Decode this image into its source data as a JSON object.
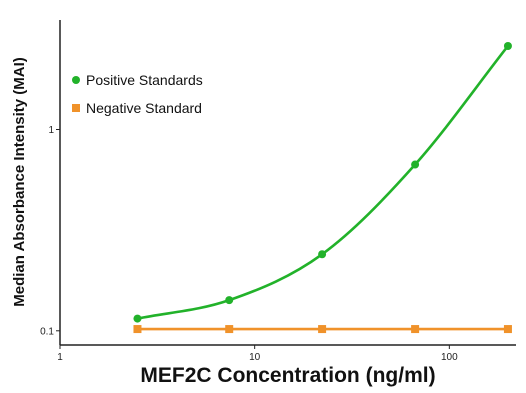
{
  "chart_data": {
    "type": "line",
    "title": "",
    "xlabel": "MEF2C Concentration (ng/ml)",
    "ylabel": "Median Absorbance Intensity (MAI)",
    "x_scale": "log",
    "y_scale": "log",
    "xlim": [
      1,
      220
    ],
    "ylim": [
      0.085,
      3.5
    ],
    "x_ticks": [
      1,
      10,
      100
    ],
    "x_tick_labels": [
      "1",
      "10",
      "100"
    ],
    "y_ticks": [
      0.1,
      1
    ],
    "y_tick_labels": [
      "0.1",
      "1"
    ],
    "grid": false,
    "legend_position": "top-left",
    "x": [
      2.5,
      7.4,
      22.2,
      66.7,
      200
    ],
    "series": [
      {
        "name": "Positive Standards",
        "color": "#22b22a",
        "marker": "circle",
        "values": [
          0.115,
          0.142,
          0.24,
          0.67,
          2.6
        ]
      },
      {
        "name": "Negative Standard",
        "color": "#f0922a",
        "marker": "square",
        "values": [
          0.102,
          0.102,
          0.102,
          0.102,
          0.102
        ]
      }
    ]
  }
}
